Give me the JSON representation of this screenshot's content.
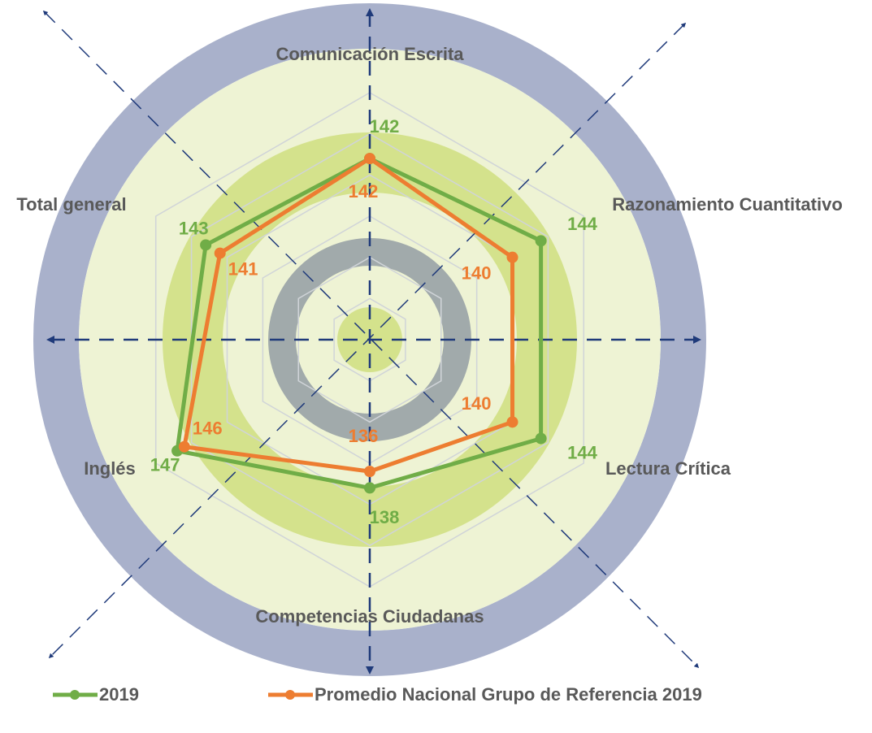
{
  "chart_data": {
    "type": "radar",
    "categories": [
      "Comunicación Escrita",
      "Razonamiento Cuantitativo",
      "Lectura Crítica",
      "Competencias Ciudadanas",
      "Inglés",
      "Total general"
    ],
    "series": [
      {
        "name": "2019",
        "color": "#70ad47",
        "values": [
          142,
          144,
          144,
          138,
          147,
          143
        ]
      },
      {
        "name": "Promedio Nacional Grupo de Referencia 2019",
        "color": "#ed7d31",
        "values": [
          142,
          140,
          140,
          136,
          146,
          141
        ]
      }
    ],
    "rlim": [
      120,
      150
    ],
    "rticks": [
      125,
      130,
      135,
      140,
      145,
      150
    ],
    "grid": true,
    "legend": "bottom"
  }
}
